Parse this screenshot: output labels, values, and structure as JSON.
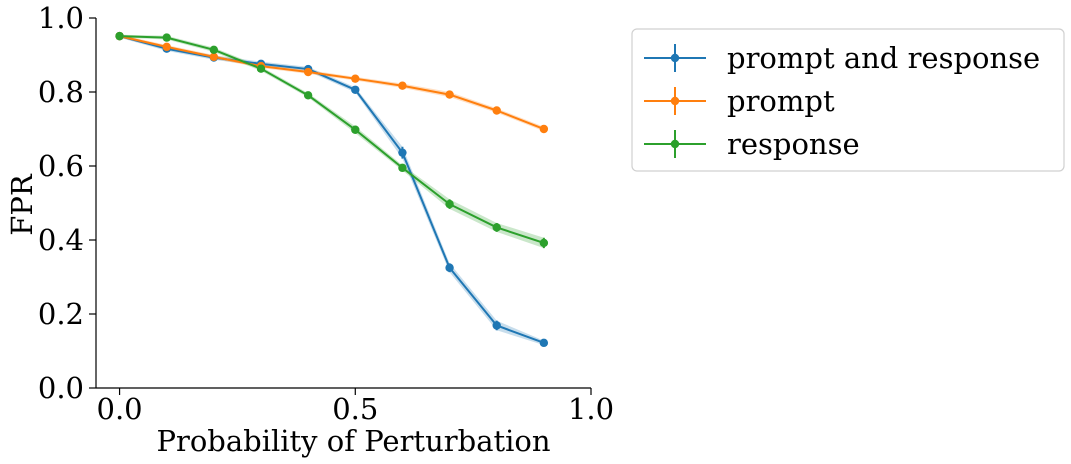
{
  "chart_data": {
    "type": "line",
    "title": "",
    "xlabel": "Probability of Perturbation",
    "ylabel": "FPR",
    "xlim": [
      -0.05,
      1.0
    ],
    "ylim": [
      0.0,
      1.0
    ],
    "xticks": [
      0.0,
      0.5,
      1.0
    ],
    "xtick_labels": [
      "0.0",
      "0.5",
      "1.0"
    ],
    "yticks": [
      0.0,
      0.2,
      0.4,
      0.6,
      0.8,
      1.0
    ],
    "ytick_labels": [
      "0.0",
      "0.2",
      "0.4",
      "0.6",
      "0.8",
      "1.0"
    ],
    "grid": false,
    "legend_position": "outside-top-right",
    "x": [
      0.0,
      0.1,
      0.2,
      0.3,
      0.4,
      0.5,
      0.6,
      0.7,
      0.8,
      0.9
    ],
    "series": [
      {
        "name": "prompt and response",
        "color": "#1f77b4",
        "values": [
          0.951,
          0.917,
          0.893,
          0.876,
          0.862,
          0.806,
          0.636,
          0.325,
          0.169,
          0.122
        ],
        "errors": [
          0.004,
          0.006,
          0.006,
          0.006,
          0.006,
          0.007,
          0.016,
          0.012,
          0.013,
          0.006
        ]
      },
      {
        "name": "prompt",
        "color": "#ff7f0e",
        "values": [
          0.951,
          0.922,
          0.895,
          0.87,
          0.854,
          0.836,
          0.817,
          0.793,
          0.75,
          0.7
        ],
        "errors": [
          0.004,
          0.005,
          0.005,
          0.005,
          0.005,
          0.005,
          0.006,
          0.007,
          0.006,
          0.006
        ]
      },
      {
        "name": "response",
        "color": "#2ca02c",
        "values": [
          0.951,
          0.947,
          0.914,
          0.863,
          0.791,
          0.698,
          0.595,
          0.497,
          0.434,
          0.392
        ],
        "errors": [
          0.004,
          0.005,
          0.006,
          0.006,
          0.006,
          0.009,
          0.007,
          0.013,
          0.012,
          0.014
        ]
      }
    ]
  }
}
